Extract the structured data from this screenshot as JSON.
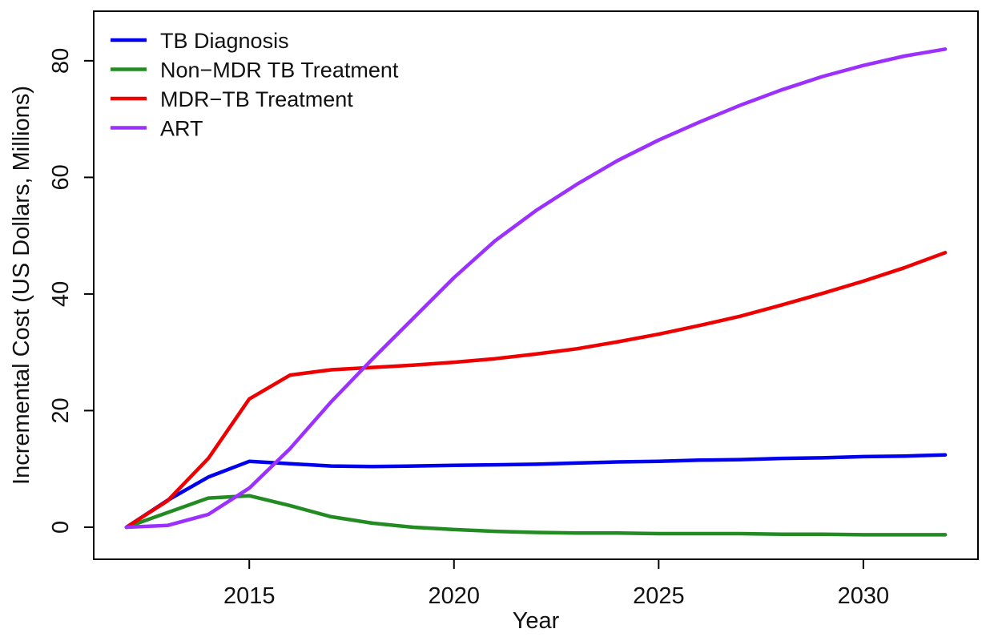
{
  "chart_data": {
    "type": "line",
    "title": "",
    "xlabel": "Year",
    "ylabel": "Incremental Cost (US Dollars, Millions)",
    "xlim": [
      2011.2,
      2032.8
    ],
    "ylim": [
      -5.5,
      88.5
    ],
    "xticks": [
      2015,
      2020,
      2025,
      2030
    ],
    "yticks": [
      0,
      20,
      40,
      60,
      80
    ],
    "grid": false,
    "legend_position": "top-left",
    "x": [
      2012,
      2013,
      2014,
      2015,
      2016,
      2017,
      2018,
      2019,
      2020,
      2021,
      2022,
      2023,
      2024,
      2025,
      2026,
      2027,
      2028,
      2029,
      2030,
      2031,
      2032
    ],
    "series": [
      {
        "name": "TB Diagnosis",
        "color": "#0000ee",
        "values": [
          0,
          4.6,
          8.6,
          11.3,
          10.9,
          10.5,
          10.4,
          10.5,
          10.6,
          10.7,
          10.8,
          11.0,
          11.2,
          11.3,
          11.5,
          11.6,
          11.8,
          11.9,
          12.1,
          12.2,
          12.4
        ]
      },
      {
        "name": "Non−MDR TB Treatment",
        "color": "#228b22",
        "values": [
          0,
          2.5,
          5.0,
          5.4,
          3.7,
          1.8,
          0.7,
          0.0,
          -0.4,
          -0.7,
          -0.9,
          -1.0,
          -1.0,
          -1.1,
          -1.1,
          -1.1,
          -1.2,
          -1.2,
          -1.3,
          -1.3,
          -1.3
        ]
      },
      {
        "name": "MDR−TB Treatment",
        "color": "#ee0000",
        "values": [
          0,
          4.5,
          11.8,
          22.0,
          26.1,
          27.0,
          27.4,
          27.8,
          28.3,
          28.9,
          29.7,
          30.6,
          31.8,
          33.1,
          34.6,
          36.2,
          38.1,
          40.1,
          42.2,
          44.5,
          47.1
        ]
      },
      {
        "name": "ART",
        "color": "#9b30ff",
        "values": [
          0,
          0.3,
          2.2,
          6.7,
          13.5,
          21.5,
          28.8,
          35.8,
          42.8,
          49.1,
          54.3,
          58.8,
          62.9,
          66.4,
          69.5,
          72.4,
          75.0,
          77.3,
          79.2,
          80.8,
          82.0
        ]
      }
    ]
  }
}
